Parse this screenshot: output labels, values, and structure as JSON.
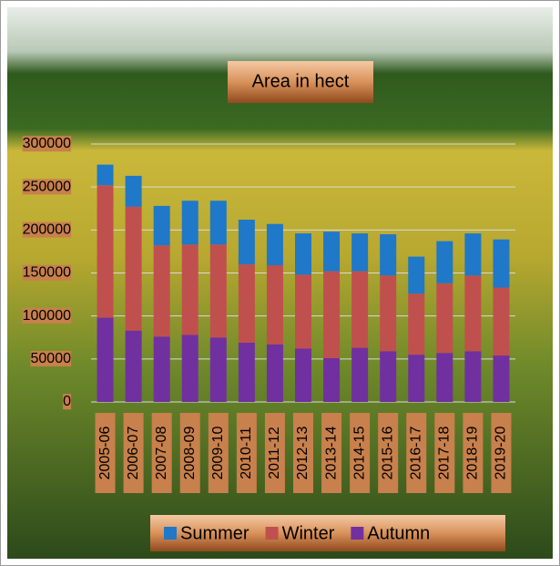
{
  "chart_data": {
    "type": "stacked-bar",
    "title": "Area in hect",
    "categories": [
      "2005-06",
      "2006-07",
      "2007-08",
      "2008-09",
      "2009-10",
      "2010-11",
      "2011-12",
      "2012-13",
      "2013-14",
      "2014-15",
      "2015-16",
      "2016-17",
      "2017-18",
      "2018-19",
      "2019-20"
    ],
    "series": [
      {
        "name": "Summer",
        "color": "#1f78c8",
        "values": [
          24000,
          36000,
          46000,
          51000,
          51000,
          52000,
          48000,
          48000,
          46000,
          44000,
          48000,
          43000,
          49000,
          49000,
          56000
        ]
      },
      {
        "name": "Winter",
        "color": "#c0504d",
        "values": [
          154000,
          144000,
          106000,
          105000,
          108000,
          91000,
          92000,
          86000,
          101000,
          89000,
          88000,
          71000,
          81000,
          88000,
          79000
        ]
      },
      {
        "name": "Autumn",
        "color": "#7030a0",
        "values": [
          98000,
          83000,
          76000,
          78000,
          75000,
          69000,
          67000,
          62000,
          51000,
          63000,
          59000,
          55000,
          57000,
          59000,
          54000
        ]
      }
    ],
    "ylim": [
      0,
      300000
    ],
    "yticks": [
      0,
      50000,
      100000,
      150000,
      200000,
      250000,
      300000
    ],
    "grid": true
  }
}
